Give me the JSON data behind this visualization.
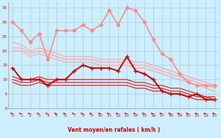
{
  "bg_color": "#cceeff",
  "grid_color": "#aacccc",
  "xlabel": "Vent moyen/en rafales ( km/h )",
  "xlim": [
    -0.5,
    23.5
  ],
  "ylim": [
    0,
    37
  ],
  "yticks": [
    0,
    5,
    10,
    15,
    20,
    25,
    30,
    35
  ],
  "xticks": [
    0,
    1,
    2,
    3,
    4,
    5,
    6,
    7,
    8,
    9,
    10,
    11,
    12,
    13,
    14,
    15,
    16,
    17,
    18,
    19,
    20,
    21,
    22,
    23
  ],
  "line_rafales": {
    "y": [
      30,
      27,
      23,
      26,
      17,
      27,
      27,
      27,
      29,
      27,
      29,
      34,
      29,
      35,
      34,
      30,
      24,
      19,
      17,
      12,
      9,
      8,
      8,
      8
    ],
    "color": "#ff8888",
    "lw": 1.2,
    "marker": "D",
    "ms": 2.5
  },
  "line_confhigh1": {
    "y": [
      23,
      22,
      20,
      21,
      20,
      19,
      18,
      18,
      18,
      18,
      17,
      17,
      17,
      17,
      16,
      16,
      15,
      14,
      13,
      12,
      11,
      10,
      9,
      8
    ],
    "color": "#ffaaaa",
    "lw": 1.0
  },
  "line_confhigh2": {
    "y": [
      21,
      21,
      19,
      20,
      19,
      18,
      17,
      17,
      17,
      17,
      16,
      16,
      16,
      16,
      15,
      15,
      14,
      13,
      12,
      11,
      10,
      9,
      8,
      7
    ],
    "color": "#ffaaaa",
    "lw": 1.0
  },
  "line_confhigh3": {
    "y": [
      20,
      20,
      18,
      19,
      18,
      17,
      16,
      16,
      16,
      16,
      15,
      15,
      15,
      15,
      14,
      14,
      13,
      12,
      11,
      10,
      9,
      8,
      7,
      6
    ],
    "color": "#ffaaaa",
    "lw": 1.0
  },
  "line_moyen": {
    "y": [
      14,
      10,
      10,
      10,
      8,
      10,
      10,
      13,
      15,
      14,
      14,
      14,
      13,
      18,
      13,
      12,
      10,
      6,
      5,
      5,
      4,
      5,
      3,
      3
    ],
    "color": "#cc0000",
    "lw": 1.5,
    "marker": "+",
    "ms": 4
  },
  "line_conflo1": {
    "y": [
      11,
      10,
      10,
      11,
      10,
      10,
      10,
      10,
      10,
      10,
      10,
      10,
      10,
      10,
      9,
      9,
      8,
      8,
      7,
      7,
      6,
      5,
      4,
      4
    ],
    "color": "#dd3333",
    "lw": 1.0
  },
  "line_conflo2": {
    "y": [
      10,
      9,
      9,
      10,
      9,
      9,
      9,
      9,
      9,
      9,
      9,
      9,
      9,
      9,
      8,
      8,
      7,
      7,
      6,
      6,
      5,
      4,
      4,
      3
    ],
    "color": "#dd3333",
    "lw": 1.0
  },
  "line_conflo3": {
    "y": [
      9,
      8,
      8,
      9,
      8,
      8,
      8,
      8,
      8,
      8,
      8,
      8,
      8,
      8,
      7,
      7,
      6,
      6,
      5,
      5,
      4,
      3,
      3,
      3
    ],
    "color": "#dd3333",
    "lw": 1.0
  },
  "arrow_color": "#cc0000",
  "tick_color": "#cc0000",
  "xlabel_color": "#cc0000",
  "xlabel_fontsize": 5.5,
  "tick_fontsize": 4.5
}
